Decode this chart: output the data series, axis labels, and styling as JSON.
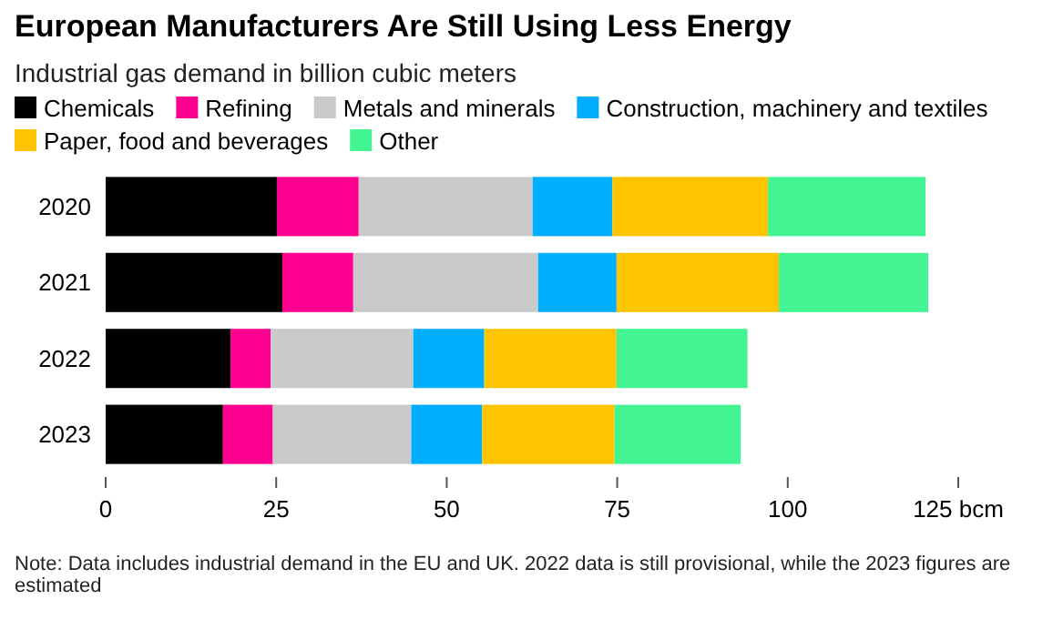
{
  "chart_data": {
    "type": "bar",
    "orientation": "horizontal",
    "stacked": true,
    "title": "European Manufacturers Are Still Using Less Energy",
    "subtitle": "Industrial gas demand in billion cubic meters",
    "categories": [
      "2020",
      "2021",
      "2022",
      "2023"
    ],
    "series": [
      {
        "name": "Chemicals",
        "color": "#000000",
        "values": [
          25.1,
          25.9,
          18.3,
          17.2
        ]
      },
      {
        "name": "Refining",
        "color": "#ff0090",
        "values": [
          12.0,
          10.4,
          5.9,
          7.3
        ]
      },
      {
        "name": "Metals and minerals",
        "color": "#cacaca",
        "values": [
          25.5,
          27.1,
          20.9,
          20.3
        ]
      },
      {
        "name": "Construction, machinery and textiles",
        "color": "#00aeff",
        "values": [
          11.7,
          11.5,
          10.4,
          10.4
        ]
      },
      {
        "name": "Paper, food and beverages",
        "color": "#ffc400",
        "values": [
          22.8,
          23.8,
          19.4,
          19.4
        ]
      },
      {
        "name": "Other",
        "color": "#42f592",
        "values": [
          23.1,
          21.9,
          19.2,
          18.5
        ]
      }
    ],
    "xlim": [
      0,
      125
    ],
    "xticks": [
      0,
      25,
      50,
      75,
      100,
      {
        "value": 125,
        "label": "125 bcm"
      }
    ],
    "grid": false,
    "legend": "top",
    "annotations": [
      "Note: Data includes industrial demand in the EU and UK. 2022 data is still provisional, while the 2023 figures are estimated"
    ]
  }
}
